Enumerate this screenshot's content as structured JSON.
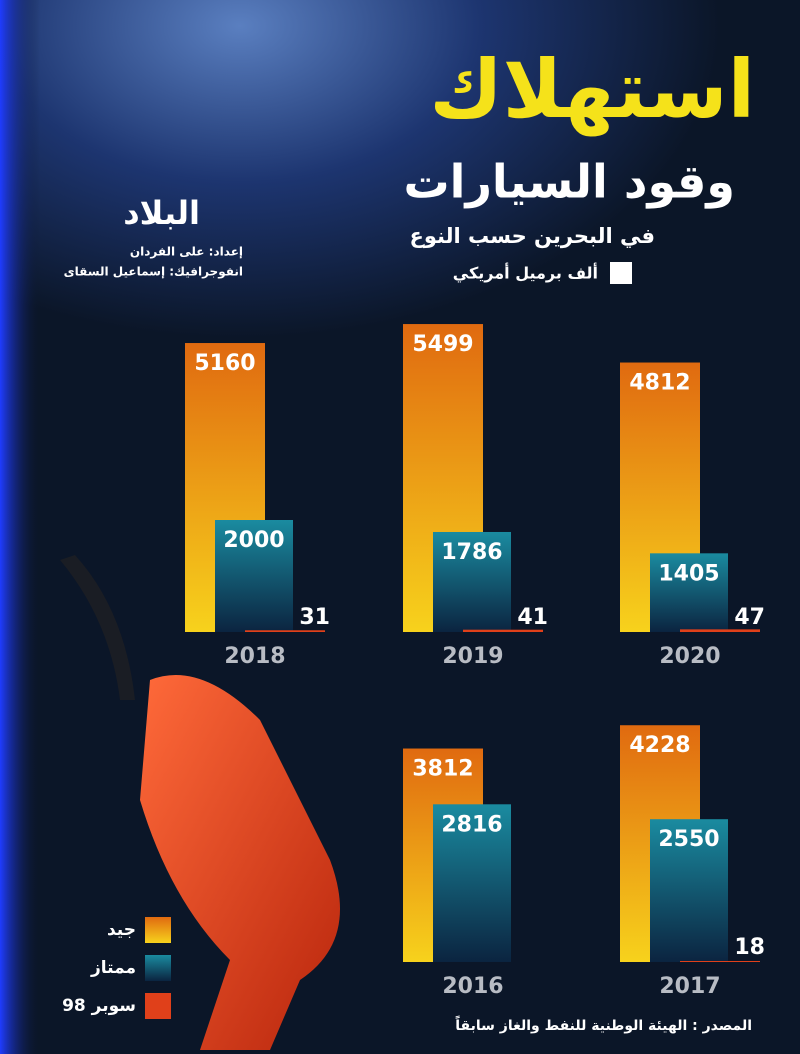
{
  "chart_data": {
    "type": "bar",
    "title": "استهلاك",
    "subtitle": "وقود السيارات",
    "note": "في البحرين حسب النوع",
    "unit": "ألف برميل أمريكي",
    "logo": "البلاد",
    "credits": [
      "إعداد: على الفردان",
      "انفوجرافيك: إسماعيل السقاى"
    ],
    "source": "المصدر : الهيئة الوطنية للنفط والغاز سابقاً",
    "categories": [
      "2016",
      "2017",
      "2018",
      "2019",
      "2020"
    ],
    "series": [
      {
        "name": "جيد",
        "color": "#f7d21c",
        "values": [
          3812,
          4228,
          5160,
          5499,
          4812
        ]
      },
      {
        "name": "ممتاز",
        "color": "#1a8ba0",
        "values": [
          2816,
          2550,
          2000,
          1786,
          1405
        ]
      },
      {
        "name": "سوبر 98",
        "color": "#e0401a",
        "values": [
          null,
          18,
          31,
          41,
          47
        ]
      }
    ]
  }
}
